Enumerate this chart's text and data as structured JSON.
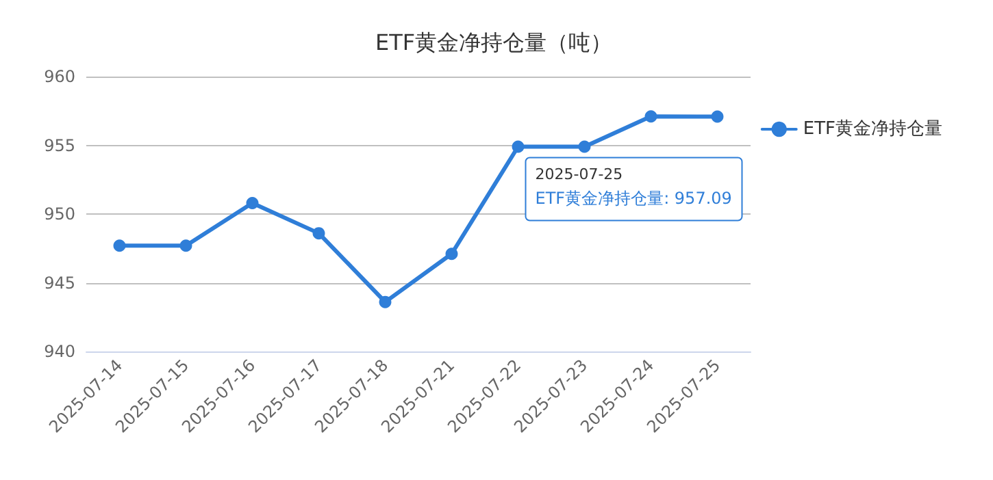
{
  "chart_data": {
    "type": "line",
    "title": "ETF黄金净持仓量（吨）",
    "categories": [
      "2025-07-14",
      "2025-07-15",
      "2025-07-16",
      "2025-07-17",
      "2025-07-18",
      "2025-07-21",
      "2025-07-22",
      "2025-07-23",
      "2025-07-24",
      "2025-07-25"
    ],
    "series": [
      {
        "name": "ETF黄金净持仓量",
        "color": "#2f7ed8",
        "values": [
          947.7,
          947.7,
          950.8,
          948.6,
          943.6,
          947.1,
          954.9,
          954.9,
          957.1,
          957.09
        ]
      }
    ],
    "ylim": [
      940,
      960
    ],
    "yticks": [
      940,
      945,
      950,
      955,
      960
    ],
    "grid": "y",
    "legend": "right",
    "marker": "circle",
    "line_style": "solid",
    "annotations": [
      {
        "text": "2025-07-25\nETF黄金净持仓量: 957.09",
        "x": "2025-07-25",
        "y": 957.09
      }
    ]
  }
}
